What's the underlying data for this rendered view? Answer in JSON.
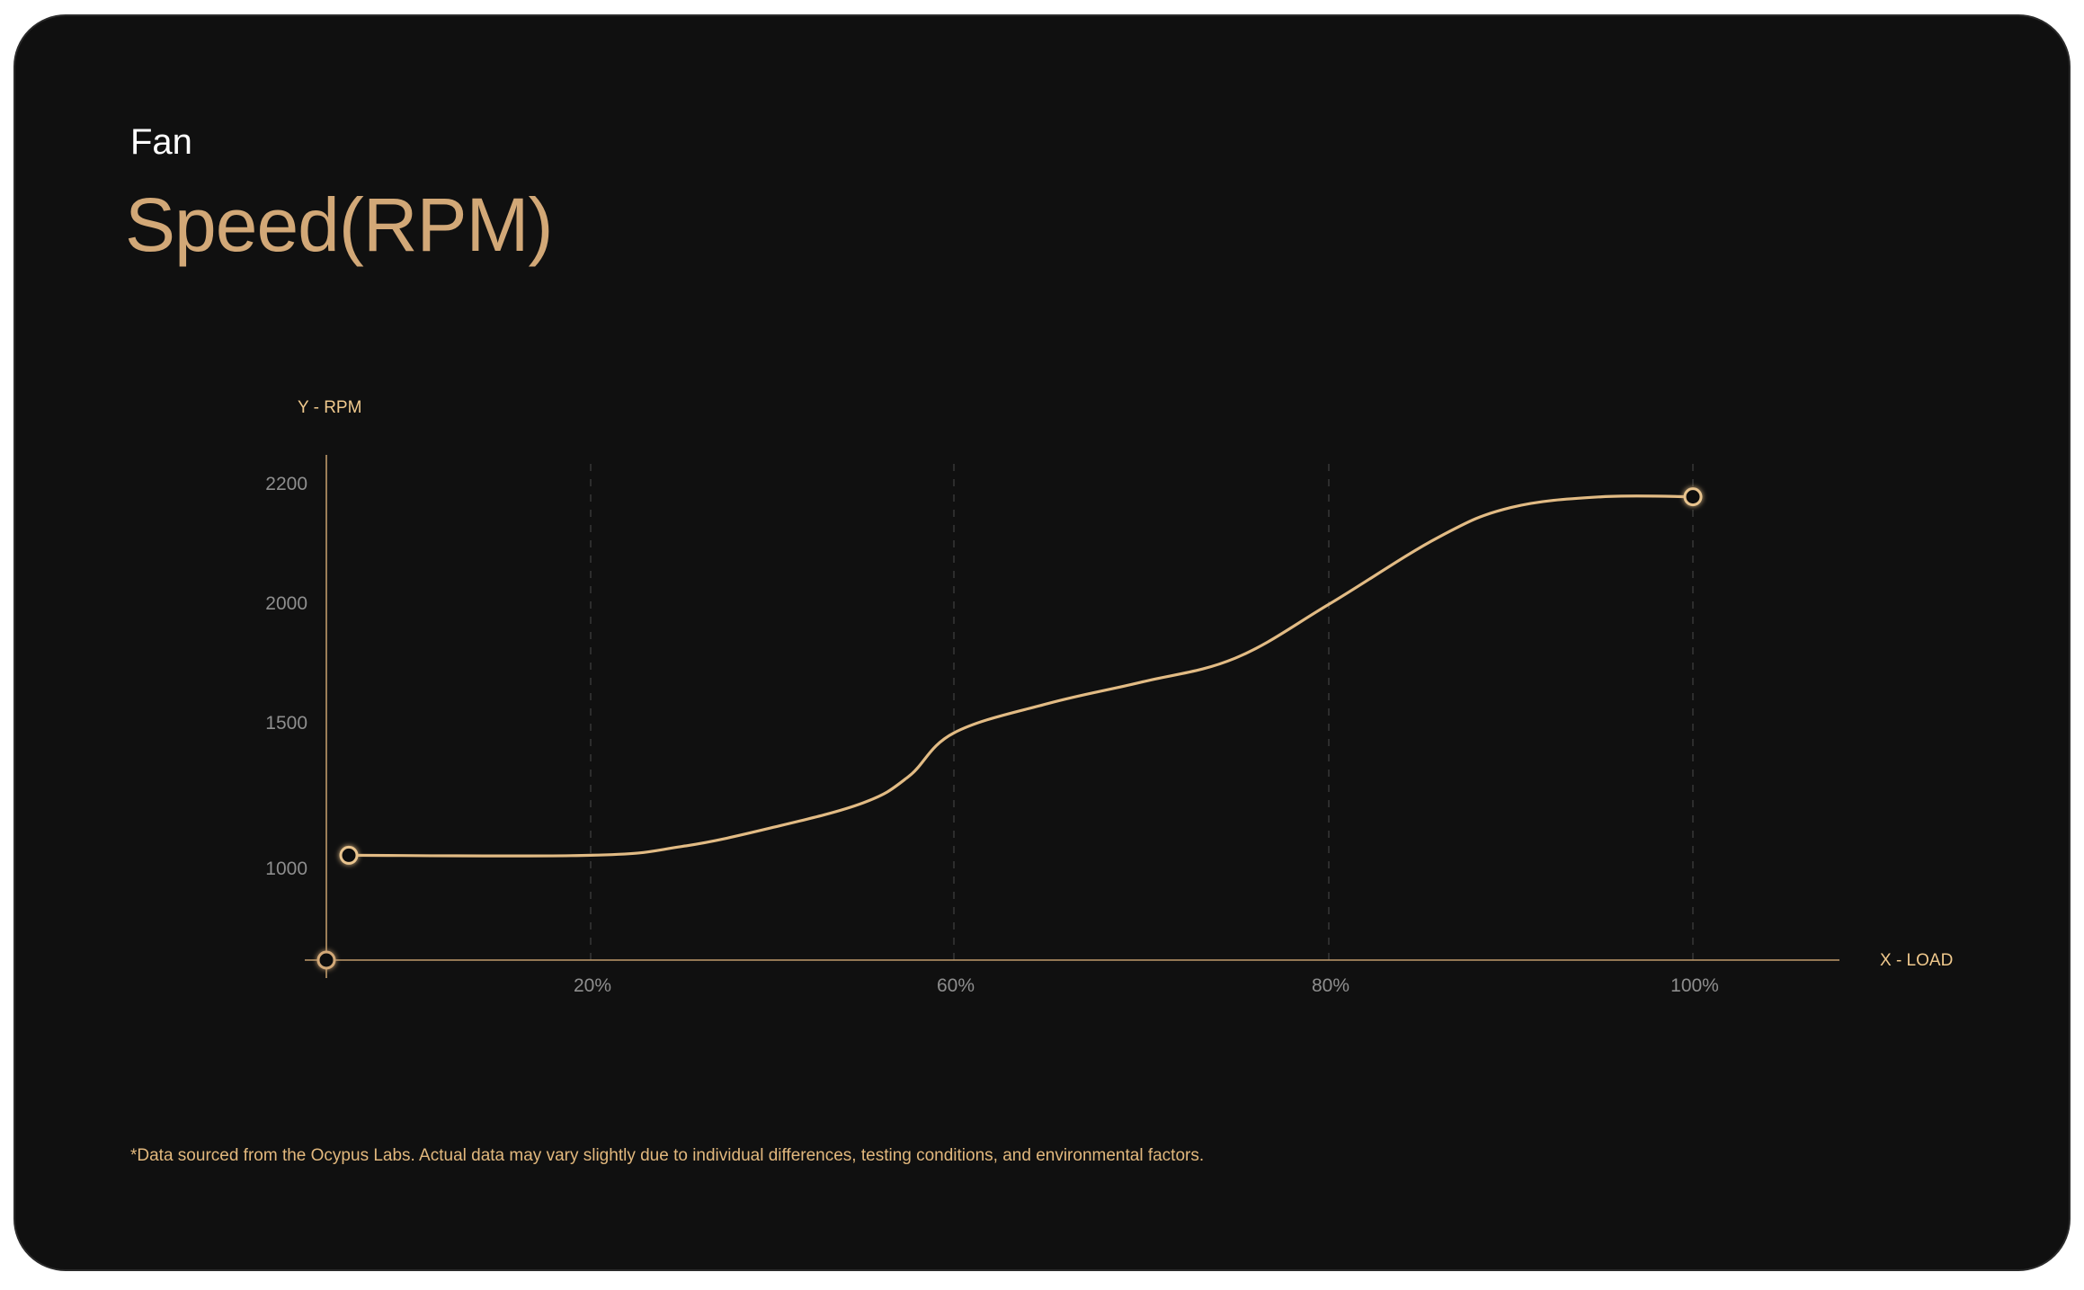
{
  "header": {
    "overline": "Fan",
    "title": "Speed(RPM)"
  },
  "footnote": "*Data sourced from the Ocypus Labs. Actual data may vary slightly due to individual differences, testing conditions, and environmental factors.",
  "colors": {
    "background": "#101010",
    "accent": "#d2a877",
    "curve": "#e2bb84",
    "axis": "#bf9a6a",
    "grid": "#3a3a3a",
    "tick_text": "#8e8e8e"
  },
  "chart_data": {
    "type": "line",
    "xlabel": "X - LOAD",
    "ylabel": "Y - RPM",
    "x_ticks": [
      {
        "value": 20,
        "label": "20%"
      },
      {
        "value": 60,
        "label": "60%"
      },
      {
        "value": 80,
        "label": "80%"
      },
      {
        "value": 100,
        "label": "100%"
      }
    ],
    "y_ticks": [
      {
        "value": 1000,
        "label": "1000"
      },
      {
        "value": 1500,
        "label": "1500"
      },
      {
        "value": 2000,
        "label": "2000"
      },
      {
        "value": 2200,
        "label": "2200"
      }
    ],
    "series": [
      {
        "points": [
          {
            "x": 2,
            "y": 1045
          },
          {
            "x": 20,
            "y": 1045
          },
          {
            "x": 30,
            "y": 1075
          },
          {
            "x": 40,
            "y": 1140
          },
          {
            "x": 50,
            "y": 1225
          },
          {
            "x": 55,
            "y": 1315
          },
          {
            "x": 60,
            "y": 1465
          },
          {
            "x": 65,
            "y": 1580
          },
          {
            "x": 70,
            "y": 1670
          },
          {
            "x": 75,
            "y": 1770
          },
          {
            "x": 80,
            "y": 1995
          },
          {
            "x": 86,
            "y": 2110
          },
          {
            "x": 90,
            "y": 2160
          },
          {
            "x": 95,
            "y": 2178
          },
          {
            "x": 100,
            "y": 2178
          }
        ],
        "markers": [
          {
            "x": 2,
            "y": 1045
          },
          {
            "x": 100,
            "y": 2178
          }
        ]
      }
    ],
    "origin_marker": true,
    "grid": "vertical-dashed"
  }
}
